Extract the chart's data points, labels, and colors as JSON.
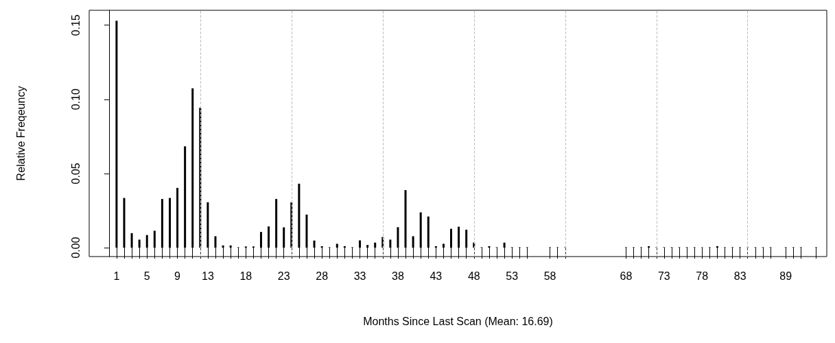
{
  "chart_data": {
    "type": "bar",
    "xlabel": "Months Since Last Scan (Mean: 16.69)",
    "ylabel": "Relative Freqeuncy",
    "color": "#000000",
    "grid": false,
    "x": [
      1,
      2,
      3,
      4,
      5,
      6,
      7,
      8,
      9,
      10,
      11,
      12,
      13,
      14,
      15,
      16,
      17,
      18,
      19,
      20,
      21,
      22,
      23,
      24,
      25,
      26,
      27,
      28,
      29,
      30,
      31,
      32,
      33,
      34,
      35,
      36,
      37,
      38,
      39,
      40,
      41,
      42,
      43,
      44,
      45,
      46,
      47,
      48,
      49,
      50,
      51,
      52,
      53,
      54,
      55,
      58,
      59,
      60,
      68,
      69,
      70,
      71,
      72,
      73,
      74,
      75,
      76,
      77,
      78,
      79,
      80,
      81,
      82,
      83,
      84,
      85,
      86,
      87,
      89,
      90,
      91,
      93
    ],
    "values": [
      0.153,
      0.0335,
      0.0098,
      0.0054,
      0.0085,
      0.0114,
      0.0328,
      0.0335,
      0.0403,
      0.0683,
      0.1074,
      0.0943,
      0.0306,
      0.0077,
      0.0015,
      0.0015,
      0.0003,
      0.0008,
      0.0008,
      0.0106,
      0.0143,
      0.0328,
      0.0137,
      0.0306,
      0.0431,
      0.0223,
      0.0048,
      0.001,
      0.0003,
      0.0026,
      0.001,
      0.0003,
      0.0049,
      0.0018,
      0.0034,
      0.0072,
      0.0054,
      0.0138,
      0.0388,
      0.0077,
      0.0238,
      0.021,
      0.001,
      0.0026,
      0.0127,
      0.0141,
      0.0121,
      0.0034,
      0.0003,
      0.001,
      0.0003,
      0.0034,
      0.0003,
      0.0003,
      0.0003,
      0.0003,
      0.0003,
      0.0003,
      0.0003,
      0.0003,
      0.0003,
      0.001,
      0.0003,
      0.0003,
      0.0003,
      0.0003,
      0.0003,
      0.0003,
      0.0003,
      0.0003,
      0.001,
      0.0003,
      0.0003,
      0.0003,
      0.0003,
      0.0003,
      0.0003,
      0.0003,
      0.0003,
      0.0003,
      0.0003,
      0.0003
    ],
    "xlim": [
      -2.6,
      94.4
    ],
    "xticks": [
      1,
      {
        "value": 2,
        "label": null
      },
      {
        "value": 3,
        "label": null
      },
      {
        "value": 4,
        "label": null
      },
      5,
      {
        "value": 6,
        "label": null
      },
      {
        "value": 7,
        "label": null
      },
      {
        "value": 8,
        "label": null
      },
      9,
      {
        "value": 10,
        "label": null
      },
      {
        "value": 11,
        "label": null
      },
      {
        "value": 12,
        "label": null
      },
      13,
      {
        "value": 14,
        "label": null
      },
      {
        "value": 15,
        "label": null
      },
      {
        "value": 16,
        "label": null
      },
      {
        "value": 17,
        "label": null
      },
      18,
      {
        "value": 19,
        "label": null
      },
      {
        "value": 20,
        "label": null
      },
      {
        "value": 21,
        "label": null
      },
      {
        "value": 22,
        "label": null
      },
      23,
      {
        "value": 24,
        "label": null
      },
      {
        "value": 25,
        "label": null
      },
      {
        "value": 26,
        "label": null
      },
      {
        "value": 27,
        "label": null
      },
      28,
      {
        "value": 29,
        "label": null
      },
      {
        "value": 30,
        "label": null
      },
      {
        "value": 31,
        "label": null
      },
      {
        "value": 32,
        "label": null
      },
      33,
      {
        "value": 34,
        "label": null
      },
      {
        "value": 35,
        "label": null
      },
      {
        "value": 36,
        "label": null
      },
      {
        "value": 37,
        "label": null
      },
      38,
      {
        "value": 39,
        "label": null
      },
      {
        "value": 40,
        "label": null
      },
      {
        "value": 41,
        "label": null
      },
      {
        "value": 42,
        "label": null
      },
      43,
      {
        "value": 44,
        "label": null
      },
      {
        "value": 45,
        "label": null
      },
      {
        "value": 46,
        "label": null
      },
      {
        "value": 47,
        "label": null
      },
      48,
      {
        "value": 49,
        "label": null
      },
      {
        "value": 50,
        "label": null
      },
      {
        "value": 51,
        "label": null
      },
      {
        "value": 52,
        "label": null
      },
      53,
      {
        "value": 54,
        "label": null
      },
      {
        "value": 55,
        "label": null
      },
      58,
      {
        "value": 59,
        "label": null
      },
      {
        "value": 60,
        "label": null
      },
      68,
      {
        "value": 69,
        "label": null
      },
      {
        "value": 70,
        "label": null
      },
      {
        "value": 71,
        "label": null
      },
      {
        "value": 72,
        "label": null
      },
      73,
      {
        "value": 74,
        "label": null
      },
      {
        "value": 75,
        "label": null
      },
      {
        "value": 76,
        "label": null
      },
      {
        "value": 77,
        "label": null
      },
      78,
      {
        "value": 79,
        "label": null
      },
      {
        "value": 80,
        "label": null
      },
      {
        "value": 81,
        "label": null
      },
      {
        "value": 82,
        "label": null
      },
      83,
      {
        "value": 84,
        "label": null
      },
      {
        "value": 85,
        "label": null
      },
      {
        "value": 86,
        "label": null
      },
      {
        "value": 87,
        "label": null
      },
      89,
      {
        "value": 90,
        "label": null
      },
      {
        "value": 91,
        "label": null
      },
      {
        "value": 93,
        "label": null
      }
    ],
    "ylim": [
      -0.006,
      0.16
    ],
    "yticks": [
      {
        "value": 0,
        "label": "0.00"
      },
      {
        "value": 0.05,
        "label": "0.05"
      },
      {
        "value": 0.1,
        "label": "0.10"
      },
      {
        "value": 0.15,
        "label": "0.15"
      }
    ],
    "ref_lines": [
      {
        "axis": "x",
        "value": 12,
        "color": "#bebebe",
        "line_style": "dashed"
      },
      {
        "axis": "x",
        "value": 24,
        "color": "#bebebe",
        "line_style": "dashed"
      },
      {
        "axis": "x",
        "value": 36,
        "color": "#bebebe",
        "line_style": "dashed"
      },
      {
        "axis": "x",
        "value": 48,
        "color": "#bebebe",
        "line_style": "dashed"
      },
      {
        "axis": "x",
        "value": 60,
        "color": "#bebebe",
        "line_style": "dashed"
      },
      {
        "axis": "x",
        "value": 72,
        "color": "#bebebe",
        "line_style": "dashed"
      },
      {
        "axis": "x",
        "value": 84,
        "color": "#bebebe",
        "line_style": "dashed"
      }
    ]
  }
}
